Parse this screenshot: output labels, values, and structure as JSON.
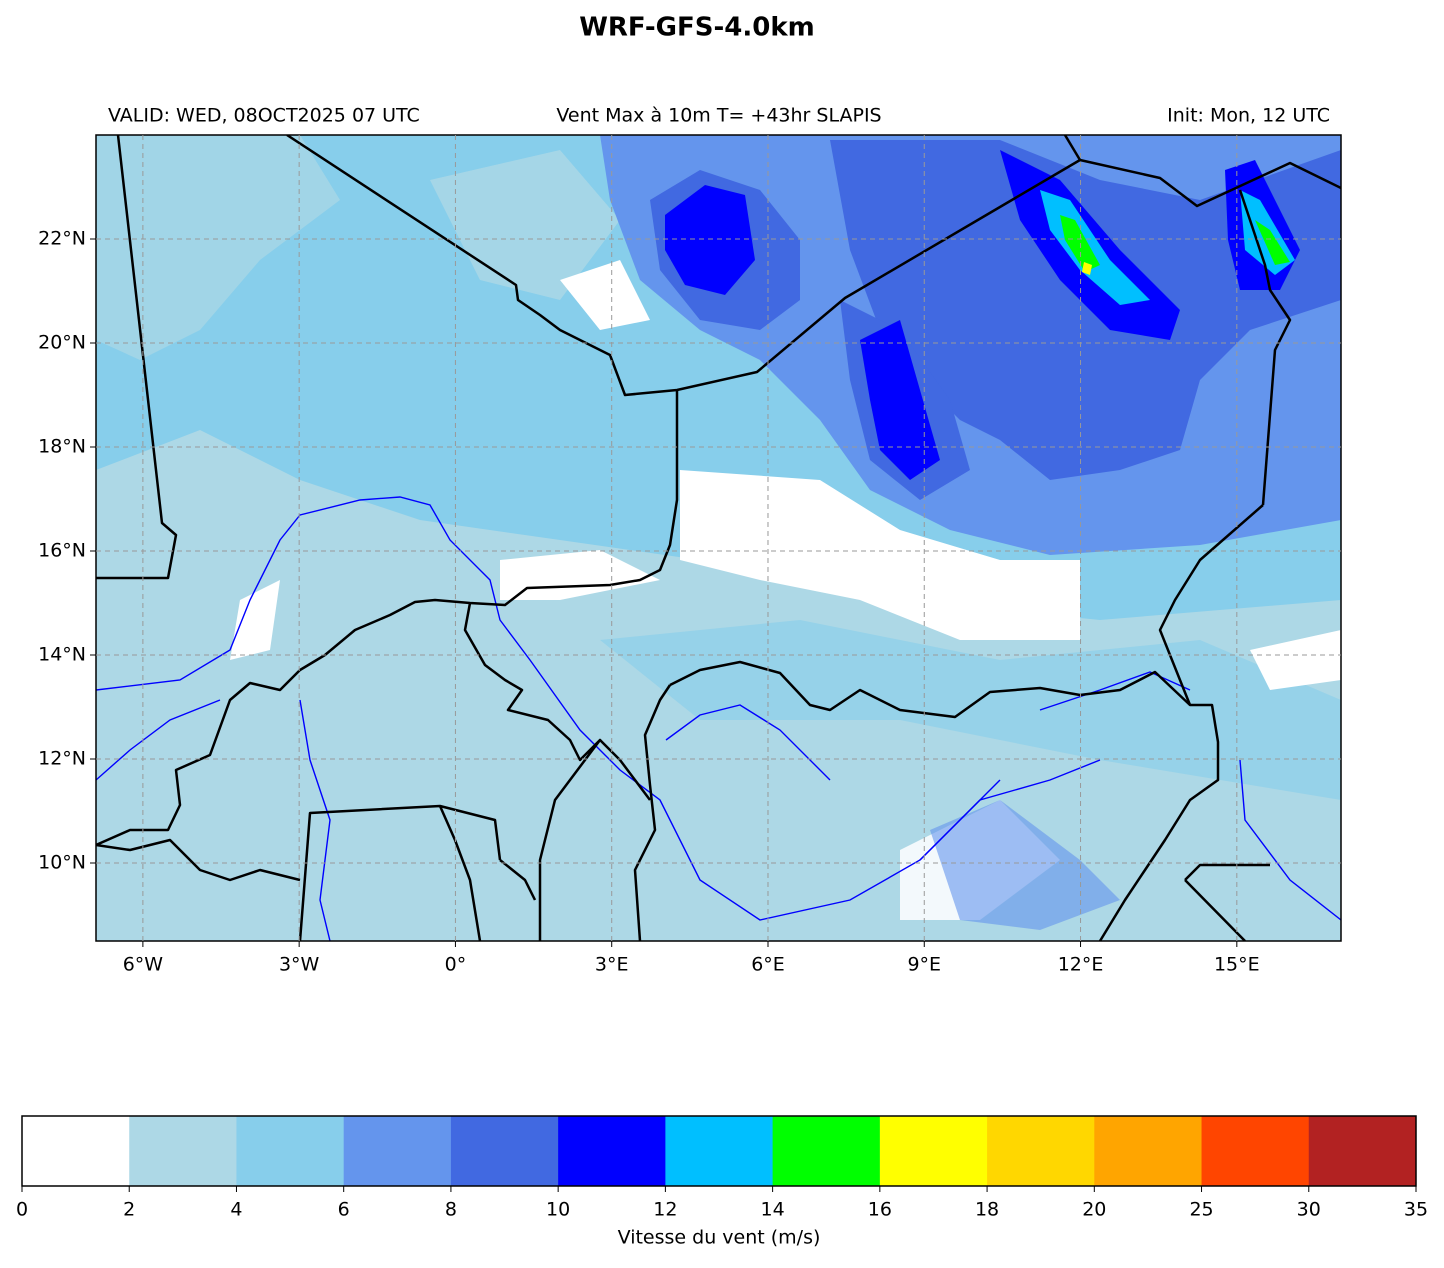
{
  "chart_data": {
    "type": "map",
    "title": "WRF-GFS-4.0km",
    "subtitle_left": "VALID: WED, 08OCT2025 07 UTC",
    "subtitle_center": "Vent Max à 10m T= +43hr SLAPIS",
    "subtitle_right": "Init: Mon, 12 UTC",
    "xlim": [
      -6.9,
      17
    ],
    "ylim": [
      8.5,
      24
    ],
    "xticks": [
      {
        "value": -6,
        "label": "6°W"
      },
      {
        "value": -3,
        "label": "3°W"
      },
      {
        "value": 0,
        "label": "0°"
      },
      {
        "value": 3,
        "label": "3°E"
      },
      {
        "value": 6,
        "label": "6°E"
      },
      {
        "value": 9,
        "label": "9°E"
      },
      {
        "value": 12,
        "label": "12°E"
      },
      {
        "value": 15,
        "label": "15°E"
      }
    ],
    "yticks": [
      {
        "value": 10,
        "label": "10°N"
      },
      {
        "value": 12,
        "label": "12°N"
      },
      {
        "value": 14,
        "label": "14°N"
      },
      {
        "value": 16,
        "label": "16°N"
      },
      {
        "value": 18,
        "label": "18°N"
      },
      {
        "value": 20,
        "label": "20°N"
      },
      {
        "value": 22,
        "label": "22°N"
      }
    ],
    "grid": true,
    "colorbar": {
      "label": "Vitesse du vent (m/s)",
      "boundaries": [
        0,
        2,
        4,
        6,
        8,
        10,
        12,
        14,
        16,
        18,
        20,
        25,
        30,
        35
      ],
      "colors": [
        "#ffffff",
        "#add8e6",
        "#87ceeb",
        "#6495ed",
        "#4169e1",
        "#0000ff",
        "#00bfff",
        "#00ff00",
        "#ffff00",
        "#ffd700",
        "#ffa500",
        "#ff4500",
        "#b22222"
      ]
    }
  }
}
